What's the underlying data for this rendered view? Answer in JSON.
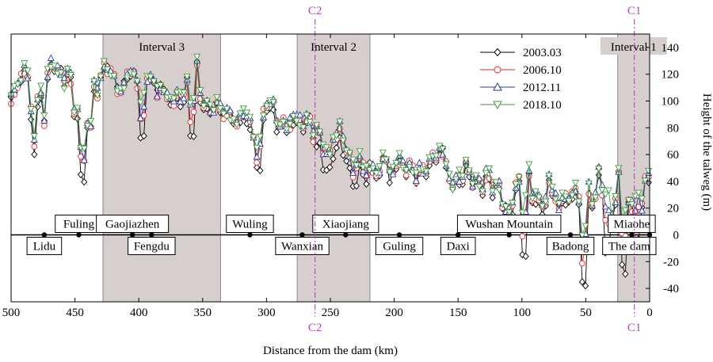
{
  "chart_data": {
    "type": "line",
    "xlabel": "Distance from the dam (km)",
    "ylabel": "Height of the talweg (m)",
    "xlim": [
      500,
      0
    ],
    "ylim": [
      -50,
      150
    ],
    "x_ticks": [
      500,
      450,
      400,
      350,
      300,
      250,
      200,
      150,
      100,
      50,
      0
    ],
    "y_ticks": [
      -40,
      -20,
      0,
      20,
      40,
      60,
      80,
      100,
      120,
      140
    ],
    "y_axis_side": "right",
    "legend_position": "top-right",
    "x_reversed": true,
    "series": [
      {
        "name": "2003.03",
        "color": "#000000",
        "marker": "diamond"
      },
      {
        "name": "2006.10",
        "color": "#e8262c",
        "marker": "circle"
      },
      {
        "name": "2012.11",
        "color": "#2e3a9c",
        "marker": "triangle-up"
      },
      {
        "name": "2018.10",
        "color": "#3c9c3c",
        "marker": "triangle-down"
      }
    ],
    "intervals": [
      {
        "label": "Interval 3",
        "x_range": [
          428,
          336
        ]
      },
      {
        "label": "Interval 2",
        "x_range": [
          276,
          219
        ]
      },
      {
        "label": "Interval 1",
        "x_range": [
          25,
          0
        ]
      }
    ],
    "sections": [
      {
        "label": "C2",
        "x": 262
      },
      {
        "label": "C1",
        "x": 12
      }
    ],
    "towns": [
      {
        "name": "Lidu",
        "x": 474,
        "label_side": "below"
      },
      {
        "name": "Fuling",
        "x": 447,
        "label_side": "above"
      },
      {
        "name": "Gaojiazhen",
        "x": 405,
        "label_side": "above"
      },
      {
        "name": "Fengdu",
        "x": 390,
        "label_side": "below"
      },
      {
        "name": "Wuling",
        "x": 313,
        "label_side": "above"
      },
      {
        "name": "Wanxian",
        "x": 272,
        "label_side": "below"
      },
      {
        "name": "Xiaojiang",
        "x": 238,
        "label_side": "above"
      },
      {
        "name": "Guling",
        "x": 196,
        "label_side": "below"
      },
      {
        "name": "Daxi",
        "x": 150,
        "label_side": "below"
      },
      {
        "name": "Wushan Mountain",
        "x": 110,
        "label_side": "above"
      },
      {
        "name": "Badong",
        "x": 62,
        "label_side": "below"
      },
      {
        "name": "Miaohe",
        "x": 14,
        "label_side": "above"
      },
      {
        "name": "The dam",
        "x": 0,
        "label_side": "below"
      }
    ],
    "profile_control": [
      [
        500,
        100
      ],
      [
        496,
        108
      ],
      [
        492,
        115
      ],
      [
        488,
        126
      ],
      [
        485,
        95
      ],
      [
        482,
        72
      ],
      [
        480,
        96
      ],
      [
        477,
        110
      ],
      [
        474,
        84
      ],
      [
        471,
        122
      ],
      [
        468,
        126
      ],
      [
        465,
        118
      ],
      [
        462,
        126
      ],
      [
        459,
        108
      ],
      [
        456,
        120
      ],
      [
        453,
        114
      ],
      [
        450,
        86
      ],
      [
        447,
        92
      ],
      [
        444,
        46
      ],
      [
        441,
        80
      ],
      [
        438,
        75
      ],
      [
        435,
        110
      ],
      [
        432,
        102
      ],
      [
        429,
        120
      ],
      [
        426,
        126
      ],
      [
        423,
        118
      ],
      [
        420,
        120
      ],
      [
        417,
        108
      ],
      [
        414,
        104
      ],
      [
        410,
        115
      ],
      [
        406,
        120
      ],
      [
        402,
        116
      ],
      [
        398,
        90
      ],
      [
        394,
        115
      ],
      [
        390,
        118
      ],
      [
        386,
        104
      ],
      [
        382,
        112
      ],
      [
        378,
        102
      ],
      [
        374,
        96
      ],
      [
        370,
        104
      ],
      [
        366,
        98
      ],
      [
        362,
        115
      ],
      [
        358,
        85
      ],
      [
        355,
        132
      ],
      [
        351,
        95
      ],
      [
        347,
        98
      ],
      [
        343,
        88
      ],
      [
        339,
        100
      ],
      [
        335,
        88
      ],
      [
        331,
        90
      ],
      [
        327,
        85
      ],
      [
        323,
        82
      ],
      [
        319,
        90
      ],
      [
        315,
        84
      ],
      [
        311,
        78
      ],
      [
        307,
        60
      ],
      [
        303,
        88
      ],
      [
        299,
        95
      ],
      [
        295,
        98
      ],
      [
        291,
        75
      ],
      [
        287,
        82
      ],
      [
        283,
        78
      ],
      [
        279,
        86
      ],
      [
        275,
        84
      ],
      [
        271,
        80
      ],
      [
        267,
        90
      ],
      [
        263,
        70
      ],
      [
        259,
        80
      ],
      [
        255,
        62
      ],
      [
        251,
        58
      ],
      [
        247,
        68
      ],
      [
        243,
        80
      ],
      [
        239,
        66
      ],
      [
        235,
        60
      ],
      [
        231,
        48
      ],
      [
        227,
        56
      ],
      [
        223,
        44
      ],
      [
        219,
        50
      ],
      [
        215,
        46
      ],
      [
        211,
        48
      ],
      [
        207,
        62
      ],
      [
        203,
        40
      ],
      [
        199,
        52
      ],
      [
        195,
        56
      ],
      [
        191,
        46
      ],
      [
        187,
        52
      ],
      [
        183,
        40
      ],
      [
        179,
        50
      ],
      [
        175,
        42
      ],
      [
        171,
        60
      ],
      [
        167,
        55
      ],
      [
        163,
        64
      ],
      [
        159,
        50
      ],
      [
        155,
        30
      ],
      [
        151,
        45
      ],
      [
        147,
        38
      ],
      [
        143,
        52
      ],
      [
        139,
        35
      ],
      [
        135,
        42
      ],
      [
        131,
        30
      ],
      [
        127,
        48
      ],
      [
        123,
        32
      ],
      [
        119,
        40
      ],
      [
        115,
        22
      ],
      [
        111,
        15
      ],
      [
        107,
        20
      ],
      [
        103,
        45
      ],
      [
        99,
        10
      ],
      [
        95,
        50
      ],
      [
        91,
        22
      ],
      [
        87,
        30
      ],
      [
        83,
        12
      ],
      [
        79,
        42
      ],
      [
        75,
        30
      ],
      [
        71,
        18
      ],
      [
        67,
        28
      ],
      [
        63,
        20
      ],
      [
        59,
        34
      ],
      [
        55,
        25
      ],
      [
        52,
        -10
      ],
      [
        48,
        35
      ],
      [
        45,
        20
      ],
      [
        42,
        28
      ],
      [
        39,
        52
      ],
      [
        36,
        18
      ],
      [
        33,
        42
      ],
      [
        30,
        10
      ],
      [
        27,
        20
      ],
      [
        24,
        45
      ],
      [
        21,
        8
      ],
      [
        18,
        30
      ],
      [
        15,
        15
      ],
      [
        12,
        28
      ],
      [
        9,
        38
      ],
      [
        6,
        20
      ],
      [
        3,
        45
      ],
      [
        0,
        42
      ]
    ],
    "profile_pits": [
      [
        482,
        62
      ],
      [
        444,
        42
      ],
      [
        398,
        75
      ],
      [
        358,
        77
      ],
      [
        307,
        50
      ],
      [
        255,
        52
      ],
      [
        231,
        40
      ],
      [
        99,
        -15
      ],
      [
        52,
        -38
      ],
      [
        33,
        -12
      ],
      [
        21,
        -25
      ],
      [
        9,
        -5
      ]
    ]
  }
}
